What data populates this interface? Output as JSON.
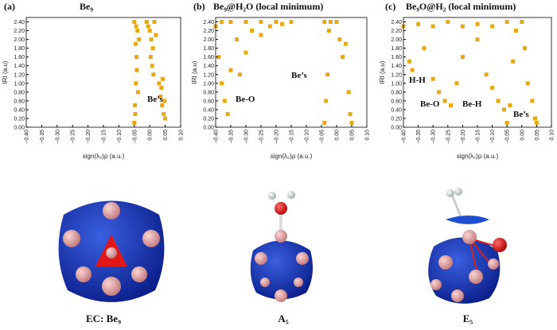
{
  "chart_data": [
    {
      "type": "scatter",
      "panel_label": "(a)",
      "title": "Be₉",
      "xlabel": "sign(λ₂)ρ (a.u.)",
      "ylabel": "IRI (a.u)",
      "color": "#e8a812",
      "xlim": [
        -0.4,
        0.1
      ],
      "ylim": [
        0,
        2.5
      ],
      "xticks": [
        {
          "value": -0.4,
          "label": "−0.40"
        },
        {
          "value": -0.35,
          "label": "−0.35"
        },
        {
          "value": -0.3,
          "label": "−0.30"
        },
        {
          "value": -0.25,
          "label": "−0.25"
        },
        {
          "value": -0.2,
          "label": "−0.20"
        },
        {
          "value": -0.15,
          "label": "−0.15"
        },
        {
          "value": -0.1,
          "label": "−0.10"
        },
        {
          "value": -0.05,
          "label": "−0.05"
        },
        {
          "value": 0,
          "label": "0.00"
        },
        {
          "value": 0.05,
          "label": "0.05"
        },
        {
          "value": 0.1,
          "label": "0.10"
        }
      ],
      "yticks": [
        {
          "value": 0,
          "label": "0.00"
        },
        {
          "value": 0.2,
          "label": "0.20"
        },
        {
          "value": 0.4,
          "label": "0.40"
        },
        {
          "value": 0.6,
          "label": "0.60"
        },
        {
          "value": 0.8,
          "label": "0.80"
        },
        {
          "value": 1,
          "label": "1.00"
        },
        {
          "value": 1.2,
          "label": "1.20"
        },
        {
          "value": 1.4,
          "label": "1.40"
        },
        {
          "value": 1.6,
          "label": "1.60"
        },
        {
          "value": 1.8,
          "label": "1.80"
        },
        {
          "value": 2,
          "label": "2.00"
        },
        {
          "value": 2.2,
          "label": "2.20"
        },
        {
          "value": 2.4,
          "label": "2.40"
        }
      ],
      "x": [
        -0.05,
        -0.048,
        -0.045,
        -0.043,
        -0.04,
        -0.05,
        -0.046,
        -0.042,
        -0.038,
        -0.035,
        -0.01,
        -0.005,
        0,
        0.005,
        0.01,
        0.015,
        0.02,
        0.003,
        0.012,
        0.03,
        0.035,
        0.04,
        0.045,
        0.05,
        0.038,
        0.042,
        0.048,
        -0.047,
        -0.044,
        0.008
      ],
      "y": [
        0.1,
        0.5,
        1.0,
        1.6,
        2.2,
        2.4,
        1.9,
        1.3,
        0.8,
        2.0,
        2.4,
        2.3,
        2.2,
        2.0,
        1.8,
        2.4,
        2.1,
        1.6,
        1.2,
        1.0,
        0.7,
        0.5,
        0.3,
        0.2,
        0.9,
        1.1,
        0.6,
        0.3,
        2.3,
        1.4
      ],
      "annotations": [
        "Be’s"
      ]
    },
    {
      "type": "scatter",
      "panel_label": "(b)",
      "title": "Be₉@H₂O (local minimum)",
      "xlabel": "sign(λ₂)ρ (a.u.)",
      "ylabel": "IRI (a.u)",
      "color": "#e8a812",
      "xlim": [
        -0.4,
        0.1
      ],
      "ylim": [
        0,
        2.5
      ],
      "xticks": [
        {
          "value": -0.4,
          "label": "−0.40"
        },
        {
          "value": -0.35,
          "label": "−0.35"
        },
        {
          "value": -0.3,
          "label": "−0.30"
        },
        {
          "value": -0.25,
          "label": "−0.25"
        },
        {
          "value": -0.2,
          "label": "−0.20"
        },
        {
          "value": -0.15,
          "label": "−0.15"
        },
        {
          "value": -0.1,
          "label": "−0.10"
        },
        {
          "value": -0.05,
          "label": "−0.05"
        },
        {
          "value": 0,
          "label": "0.00"
        },
        {
          "value": 0.05,
          "label": "0.05"
        },
        {
          "value": 0.1,
          "label": "0.10"
        }
      ],
      "yticks": [
        {
          "value": 0,
          "label": "0.00"
        },
        {
          "value": 0.2,
          "label": "0.20"
        },
        {
          "value": 0.4,
          "label": "0.40"
        },
        {
          "value": 0.6,
          "label": "0.60"
        },
        {
          "value": 0.8,
          "label": "0.80"
        },
        {
          "value": 1,
          "label": "1.00"
        },
        {
          "value": 1.2,
          "label": "1.20"
        },
        {
          "value": 1.4,
          "label": "1.40"
        },
        {
          "value": 1.6,
          "label": "1.60"
        },
        {
          "value": 1.8,
          "label": "1.80"
        },
        {
          "value": 2,
          "label": "2.00"
        },
        {
          "value": 2.2,
          "label": "2.20"
        },
        {
          "value": 2.4,
          "label": "2.40"
        }
      ],
      "x": [
        -0.36,
        -0.37,
        -0.38,
        -0.39,
        -0.4,
        -0.38,
        -0.35,
        -0.35,
        -0.33,
        -0.32,
        -0.3,
        -0.3,
        -0.28,
        -0.25,
        -0.25,
        -0.22,
        -0.2,
        -0.18,
        -0.15,
        -0.04,
        -0.035,
        -0.03,
        -0.025,
        -0.04,
        0.0,
        0.01,
        0.02,
        0.04,
        0.045,
        0.05,
        0.03,
        -0.02
      ],
      "y": [
        0.3,
        0.6,
        1.0,
        1.6,
        2.3,
        2.4,
        2.4,
        1.3,
        2.0,
        1.2,
        2.4,
        1.7,
        2.2,
        2.4,
        2.1,
        2.3,
        2.4,
        2.35,
        2.4,
        0.1,
        0.6,
        1.2,
        2.2,
        2.4,
        2.4,
        2.0,
        1.6,
        0.8,
        0.3,
        0.1,
        1.9,
        2.4
      ],
      "annotations": [
        "Be-O",
        "Be’s"
      ]
    },
    {
      "type": "scatter",
      "panel_label": "(c)",
      "title": "Be₉O@H₂ (local minimum)",
      "xlabel": "sign(λ₂)ρ (a.u.)",
      "ylabel": "IRI (a.u)",
      "color": "#e8a812",
      "xlim": [
        -0.4,
        0.1
      ],
      "ylim": [
        0,
        2.5
      ],
      "xticks": [
        {
          "value": -0.4,
          "label": "−0.40"
        },
        {
          "value": -0.35,
          "label": "−0.35"
        },
        {
          "value": -0.3,
          "label": "−0.30"
        },
        {
          "value": -0.25,
          "label": "−0.25"
        },
        {
          "value": -0.2,
          "label": "−0.20"
        },
        {
          "value": -0.15,
          "label": "−0.15"
        },
        {
          "value": -0.1,
          "label": "−0.10"
        },
        {
          "value": -0.05,
          "label": "−0.05"
        },
        {
          "value": 0,
          "label": "0.00"
        },
        {
          "value": 0.05,
          "label": "0.05"
        },
        {
          "value": 0.1,
          "label": "0.10"
        }
      ],
      "yticks": [
        {
          "value": 0,
          "label": "0.00"
        },
        {
          "value": 0.2,
          "label": "0.20"
        },
        {
          "value": 0.4,
          "label": "0.40"
        },
        {
          "value": 0.6,
          "label": "0.60"
        },
        {
          "value": 0.8,
          "label": "0.80"
        },
        {
          "value": 1,
          "label": "1.00"
        },
        {
          "value": 1.2,
          "label": "1.20"
        },
        {
          "value": 1.4,
          "label": "1.40"
        },
        {
          "value": 1.6,
          "label": "1.60"
        },
        {
          "value": 1.8,
          "label": "1.80"
        },
        {
          "value": 2,
          "label": "2.00"
        },
        {
          "value": 2.2,
          "label": "2.20"
        },
        {
          "value": 2.4,
          "label": "2.40"
        }
      ],
      "x": [
        -0.4,
        -0.35,
        -0.3,
        -0.25,
        -0.2,
        -0.15,
        -0.1,
        -0.05,
        -0.02,
        -0.38,
        -0.37,
        -0.33,
        -0.3,
        -0.28,
        -0.26,
        -0.24,
        -0.22,
        -0.2,
        -0.15,
        -0.12,
        -0.1,
        -0.08,
        -0.06,
        -0.05,
        -0.04,
        -0.03,
        0.0,
        0.01,
        0.02,
        0.035,
        0.045,
        0.05
      ],
      "y": [
        2.3,
        2.35,
        2.3,
        2.4,
        2.3,
        2.35,
        2.3,
        2.4,
        2.2,
        1.5,
        1.3,
        1.8,
        1.1,
        0.8,
        0.6,
        0.5,
        1.0,
        1.6,
        2.0,
        1.2,
        0.9,
        0.6,
        0.4,
        0.1,
        0.5,
        1.5,
        2.4,
        1.8,
        1.0,
        0.6,
        0.2,
        0.1
      ],
      "annotations": [
        "H-H",
        "Be-O",
        "Be-H",
        "Be’s"
      ]
    }
  ],
  "structures": [
    {
      "caption": "EC: Be₉"
    },
    {
      "caption": "A₅"
    },
    {
      "caption": "E₅"
    }
  ]
}
